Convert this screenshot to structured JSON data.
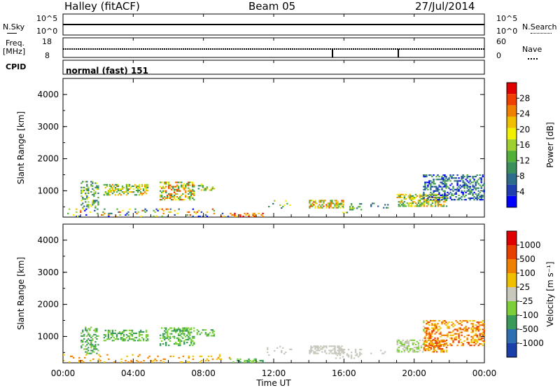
{
  "header": {
    "station": "Halley (fitACF)",
    "beam": "Beam 05",
    "date": "27/Jul/2014"
  },
  "panels": {
    "nsky_label": "N.Sky",
    "nsky_ticks": [
      "10^5",
      "10^0"
    ],
    "nsearch_label": "N.Search",
    "nsearch_ticks": [
      "10^5",
      "10^0"
    ],
    "freq_label_1": "Freq.",
    "freq_label_2": "[MHz]",
    "freq_ticks": [
      "18",
      "8"
    ],
    "nave_label": "Nave",
    "nave_ticks": [
      "60",
      "0"
    ],
    "cpid_label": "CPID",
    "cpid_value": "normal (fast) 151"
  },
  "chart_data": [
    {
      "type": "heatmap",
      "quantity": "Power",
      "ylabel": "Slant Range [km]",
      "yticks": [
        "4000",
        "3000",
        "2000",
        "1000"
      ],
      "ylim": [
        180,
        4500
      ],
      "colorbar_label": "Power [dB]",
      "colorbar_ticks": [
        "28",
        "24",
        "20",
        "16",
        "12",
        "8",
        "4"
      ],
      "colorscale": [
        "#0000ff",
        "#1f3fb0",
        "#2f6b8a",
        "#3a8f5a",
        "#52b03a",
        "#9fd030",
        "#f0f000",
        "#f0c000",
        "#f08000",
        "#f04000",
        "#e00000"
      ]
    },
    {
      "type": "heatmap",
      "quantity": "Velocity",
      "ylabel": "Slant Range [km]",
      "yticks": [
        "4000",
        "3000",
        "2000",
        "1000"
      ],
      "ylim": [
        180,
        4500
      ],
      "colorbar_label": "Velocity [m s⁻¹]",
      "colorbar_ticks": [
        "1000",
        "500",
        "100",
        "25",
        "-25",
        "-100",
        "-500",
        "-1000"
      ],
      "colorscale": [
        "#1a3fa8",
        "#2d6fb0",
        "#3a9a5a",
        "#7ccf3a",
        "#c8c8bc",
        "#f0c000",
        "#f08000",
        "#e84000",
        "#e00000"
      ]
    }
  ],
  "time_axis": {
    "ticks": [
      "00:00",
      "04:00",
      "08:00",
      "12:00",
      "16:00",
      "20:00",
      "00:00"
    ],
    "label": "Time UT"
  }
}
